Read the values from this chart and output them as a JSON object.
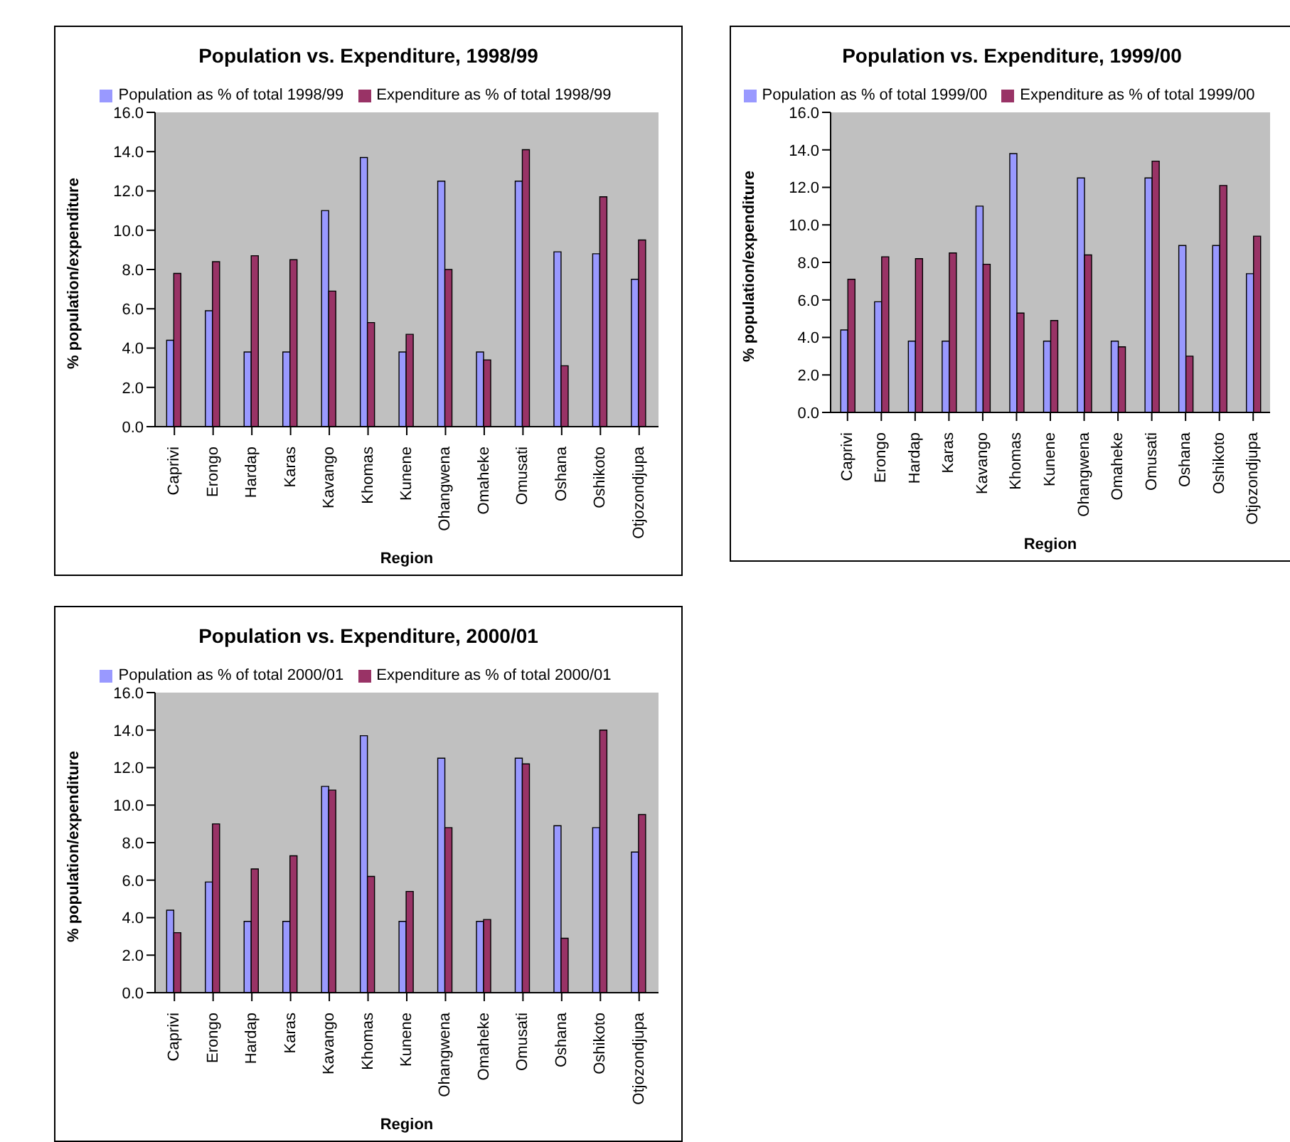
{
  "chart_data": [
    {
      "type": "bar",
      "title": "Population vs. Expenditure, 1998/99",
      "xlabel": "Region",
      "ylabel": "% population/expenditure",
      "categories": [
        "Caprivi",
        "Erongo",
        "Hardap",
        "Karas",
        "Kavango",
        "Khomas",
        "Kunene",
        "Ohangwena",
        "Omaheke",
        "Omusati",
        "Oshana",
        "Oshikoto",
        "Otjozondjupa"
      ],
      "series": [
        {
          "name": "Population as % of total 1998/99",
          "color": "#9999ff",
          "values": [
            4.4,
            5.9,
            3.8,
            3.8,
            11.0,
            13.7,
            3.8,
            12.5,
            3.8,
            12.5,
            8.9,
            8.8,
            7.5
          ]
        },
        {
          "name": "Expenditure as % of total 1998/99",
          "color": "#993366",
          "values": [
            7.8,
            8.4,
            8.7,
            8.5,
            6.9,
            5.3,
            4.7,
            8.0,
            3.4,
            14.1,
            3.1,
            11.7,
            9.5
          ]
        }
      ],
      "ylim": [
        0,
        16
      ],
      "yticks": [
        {
          "value": 0,
          "label": "0.0"
        },
        {
          "value": 2,
          "label": "2.0"
        },
        {
          "value": 4,
          "label": "4.0"
        },
        {
          "value": 6,
          "label": "6.0"
        },
        {
          "value": 8,
          "label": "8.0"
        },
        {
          "value": 10,
          "label": "10.0"
        },
        {
          "value": 12,
          "label": "12.0"
        },
        {
          "value": 14,
          "label": "14.0"
        },
        {
          "value": 16,
          "label": "16.0"
        }
      ],
      "legend": "top"
    },
    {
      "type": "bar",
      "title": "Population vs. Expenditure, 1999/00",
      "xlabel": "Region",
      "ylabel": "% population/expenditure",
      "categories": [
        "Caprivi",
        "Erongo",
        "Hardap",
        "Karas",
        "Kavango",
        "Khomas",
        "Kunene",
        "Ohangwena",
        "Omaheke",
        "Omusati",
        "Oshana",
        "Oshikoto",
        "Otjozondjupa"
      ],
      "series": [
        {
          "name": "Population as % of total 1999/00",
          "color": "#9999ff",
          "values": [
            4.4,
            5.9,
            3.8,
            3.8,
            11.0,
            13.8,
            3.8,
            12.5,
            3.8,
            12.5,
            8.9,
            8.9,
            7.4
          ]
        },
        {
          "name": "Expenditure as % of total 1999/00",
          "color": "#993366",
          "values": [
            7.1,
            8.3,
            8.2,
            8.5,
            7.9,
            5.3,
            4.9,
            8.4,
            3.5,
            13.4,
            3.0,
            12.1,
            9.4
          ]
        }
      ],
      "ylim": [
        0,
        16
      ],
      "yticks": [
        {
          "value": 0,
          "label": "0.0"
        },
        {
          "value": 2,
          "label": "2.0"
        },
        {
          "value": 4,
          "label": "4.0"
        },
        {
          "value": 6,
          "label": "6.0"
        },
        {
          "value": 8,
          "label": "8.0"
        },
        {
          "value": 10,
          "label": "10.0"
        },
        {
          "value": 12,
          "label": "12.0"
        },
        {
          "value": 14,
          "label": "14.0"
        },
        {
          "value": 16,
          "label": "16.0"
        }
      ],
      "legend": "top"
    },
    {
      "type": "bar",
      "title": "Population vs. Expenditure, 2000/01",
      "xlabel": "Region",
      "ylabel": "% population/expenditure",
      "categories": [
        "Caprivi",
        "Erongo",
        "Hardap",
        "Karas",
        "Kavango",
        "Khomas",
        "Kunene",
        "Ohangwena",
        "Omaheke",
        "Omusati",
        "Oshana",
        "Oshikoto",
        "Otjozondjupa"
      ],
      "series": [
        {
          "name": "Population as % of total 2000/01",
          "color": "#9999ff",
          "values": [
            4.4,
            5.9,
            3.8,
            3.8,
            11.0,
            13.7,
            3.8,
            12.5,
            3.8,
            12.5,
            8.9,
            8.8,
            7.5
          ]
        },
        {
          "name": "Expenditure as % of total 2000/01",
          "color": "#993366",
          "values": [
            3.2,
            9.0,
            6.6,
            7.3,
            10.8,
            6.2,
            5.4,
            8.8,
            3.9,
            12.2,
            2.9,
            14.0,
            9.5
          ]
        }
      ],
      "ylim": [
        0,
        16
      ],
      "yticks": [
        {
          "value": 0,
          "label": "0.0"
        },
        {
          "value": 2,
          "label": "2.0"
        },
        {
          "value": 4,
          "label": "4.0"
        },
        {
          "value": 6,
          "label": "6.0"
        },
        {
          "value": 8,
          "label": "8.0"
        },
        {
          "value": 10,
          "label": "10.0"
        },
        {
          "value": 12,
          "label": "12.0"
        },
        {
          "value": 14,
          "label": "14.0"
        },
        {
          "value": 16,
          "label": "16.0"
        }
      ],
      "legend": "top"
    }
  ]
}
